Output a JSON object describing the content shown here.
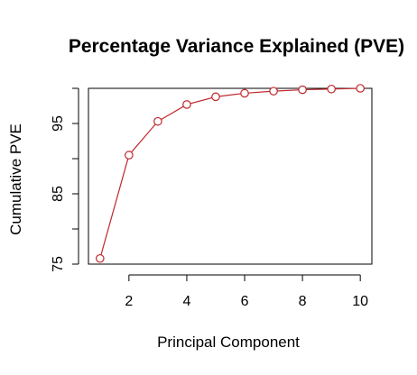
{
  "chart_data": {
    "type": "line",
    "title": "Percentage Variance Explained (PVE)",
    "xlabel": "Principal Component",
    "ylabel": "Cumulative PVE",
    "x": [
      1,
      2,
      3,
      4,
      5,
      6,
      7,
      8,
      9,
      10
    ],
    "series": [
      {
        "values": [
          75.8,
          90.5,
          95.3,
          97.7,
          98.8,
          99.3,
          99.6,
          99.8,
          99.9,
          100.0
        ],
        "color": "#c0272d",
        "marker": "open-circle"
      }
    ],
    "xticks": [
      2,
      4,
      6,
      8,
      10
    ],
    "yticks": [
      75,
      80,
      85,
      90,
      95,
      100
    ],
    "ytick_labels": [
      "75",
      "",
      "85",
      "",
      "95",
      ""
    ],
    "xlim": [
      0.6,
      10.4
    ],
    "ylim": [
      75,
      100
    ],
    "grid": false,
    "legend": "none"
  }
}
